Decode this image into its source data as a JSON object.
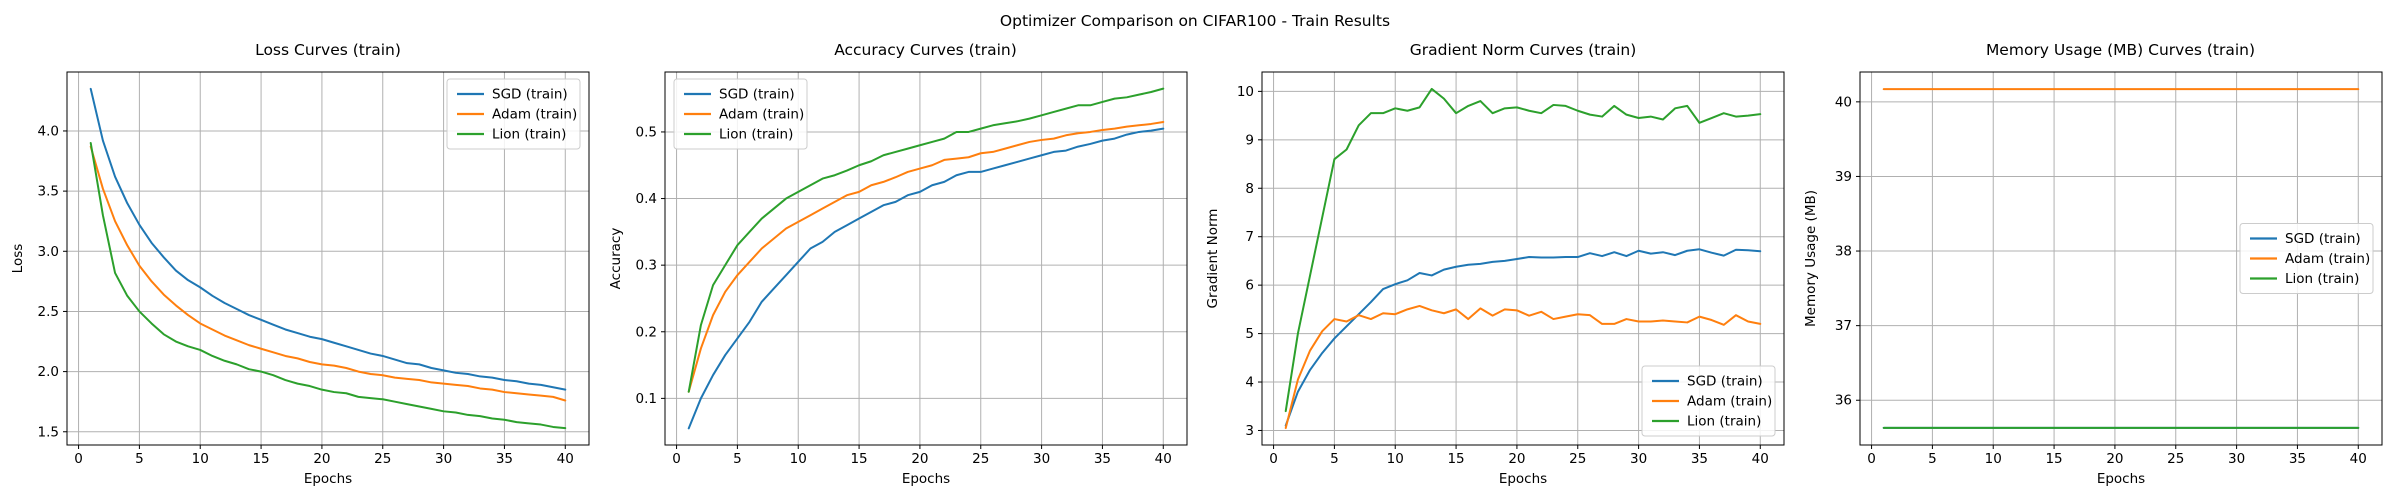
{
  "figure": {
    "suptitle": "Optimizer Comparison on CIFAR100 - Train Results",
    "background_color": "#ffffff",
    "grid_color": "#b0b0b0",
    "axis_color": "#000000",
    "legend_border_color": "#cccccc"
  },
  "chart_data": [
    {
      "type": "line",
      "title": "Loss Curves (train)",
      "xlabel": "Epochs",
      "ylabel": "Loss",
      "xlim": [
        -0.95,
        41.95
      ],
      "ylim": [
        1.39,
        4.49
      ],
      "xticks": [
        0,
        5,
        10,
        15,
        20,
        25,
        30,
        35,
        40
      ],
      "xtick_labels": [
        "0",
        "5",
        "10",
        "15",
        "20",
        "25",
        "30",
        "35",
        "40"
      ],
      "yticks": [
        1.5,
        2.0,
        2.5,
        3.0,
        3.5,
        4.0
      ],
      "ytick_labels": [
        "1.5",
        "2.0",
        "2.5",
        "3.0",
        "3.5",
        "4.0"
      ],
      "grid": true,
      "legend_position": "upper right",
      "x": [
        1,
        2,
        3,
        4,
        5,
        6,
        7,
        8,
        9,
        10,
        11,
        12,
        13,
        14,
        15,
        16,
        17,
        18,
        19,
        20,
        21,
        22,
        23,
        24,
        25,
        26,
        27,
        28,
        29,
        30,
        31,
        32,
        33,
        34,
        35,
        36,
        37,
        38,
        39,
        40
      ],
      "series": [
        {
          "name": "SGD (train)",
          "color": "#1f77b4",
          "values": [
            4.35,
            3.92,
            3.62,
            3.4,
            3.22,
            3.07,
            2.95,
            2.84,
            2.76,
            2.7,
            2.63,
            2.57,
            2.52,
            2.47,
            2.43,
            2.39,
            2.35,
            2.32,
            2.29,
            2.27,
            2.24,
            2.21,
            2.18,
            2.15,
            2.13,
            2.1,
            2.07,
            2.06,
            2.03,
            2.01,
            1.99,
            1.98,
            1.96,
            1.95,
            1.93,
            1.92,
            1.9,
            1.89,
            1.87,
            1.85
          ]
        },
        {
          "name": "Adam (train)",
          "color": "#ff7f0e",
          "values": [
            3.87,
            3.52,
            3.25,
            3.05,
            2.88,
            2.75,
            2.64,
            2.55,
            2.47,
            2.4,
            2.35,
            2.3,
            2.26,
            2.22,
            2.19,
            2.16,
            2.13,
            2.11,
            2.08,
            2.06,
            2.05,
            2.03,
            2.0,
            1.98,
            1.97,
            1.95,
            1.94,
            1.93,
            1.91,
            1.9,
            1.89,
            1.88,
            1.86,
            1.85,
            1.83,
            1.82,
            1.81,
            1.8,
            1.79,
            1.76
          ]
        },
        {
          "name": "Lion (train)",
          "color": "#2ca02c",
          "values": [
            3.9,
            3.3,
            2.82,
            2.63,
            2.5,
            2.4,
            2.31,
            2.25,
            2.21,
            2.18,
            2.13,
            2.09,
            2.06,
            2.02,
            2.0,
            1.97,
            1.93,
            1.9,
            1.88,
            1.85,
            1.83,
            1.82,
            1.79,
            1.78,
            1.77,
            1.75,
            1.73,
            1.71,
            1.69,
            1.67,
            1.66,
            1.64,
            1.63,
            1.61,
            1.6,
            1.58,
            1.57,
            1.56,
            1.54,
            1.53
          ]
        }
      ]
    },
    {
      "type": "line",
      "title": "Accuracy Curves (train)",
      "xlabel": "Epochs",
      "ylabel": "Accuracy",
      "xlim": [
        -0.95,
        41.95
      ],
      "ylim": [
        0.03,
        0.59
      ],
      "xticks": [
        0,
        5,
        10,
        15,
        20,
        25,
        30,
        35,
        40
      ],
      "xtick_labels": [
        "0",
        "5",
        "10",
        "15",
        "20",
        "25",
        "30",
        "35",
        "40"
      ],
      "yticks": [
        0.1,
        0.2,
        0.3,
        0.4,
        0.5
      ],
      "ytick_labels": [
        "0.1",
        "0.2",
        "0.3",
        "0.4",
        "0.5"
      ],
      "grid": true,
      "legend_position": "upper left",
      "x": [
        1,
        2,
        3,
        4,
        5,
        6,
        7,
        8,
        9,
        10,
        11,
        12,
        13,
        14,
        15,
        16,
        17,
        18,
        19,
        20,
        21,
        22,
        23,
        24,
        25,
        26,
        27,
        28,
        29,
        30,
        31,
        32,
        33,
        34,
        35,
        36,
        37,
        38,
        39,
        40
      ],
      "series": [
        {
          "name": "SGD (train)",
          "color": "#1f77b4",
          "values": [
            0.055,
            0.1,
            0.135,
            0.165,
            0.19,
            0.215,
            0.245,
            0.265,
            0.285,
            0.305,
            0.325,
            0.335,
            0.35,
            0.36,
            0.37,
            0.38,
            0.39,
            0.395,
            0.405,
            0.41,
            0.42,
            0.425,
            0.435,
            0.44,
            0.44,
            0.445,
            0.45,
            0.455,
            0.46,
            0.465,
            0.47,
            0.472,
            0.478,
            0.482,
            0.487,
            0.49,
            0.496,
            0.5,
            0.502,
            0.505
          ]
        },
        {
          "name": "Adam (train)",
          "color": "#ff7f0e",
          "values": [
            0.11,
            0.175,
            0.225,
            0.26,
            0.285,
            0.305,
            0.325,
            0.34,
            0.355,
            0.365,
            0.375,
            0.385,
            0.395,
            0.405,
            0.41,
            0.42,
            0.425,
            0.432,
            0.44,
            0.445,
            0.45,
            0.458,
            0.46,
            0.462,
            0.468,
            0.47,
            0.475,
            0.48,
            0.485,
            0.488,
            0.49,
            0.495,
            0.498,
            0.5,
            0.503,
            0.505,
            0.508,
            0.51,
            0.512,
            0.515
          ]
        },
        {
          "name": "Lion (train)",
          "color": "#2ca02c",
          "values": [
            0.11,
            0.21,
            0.27,
            0.3,
            0.33,
            0.35,
            0.37,
            0.385,
            0.4,
            0.41,
            0.42,
            0.43,
            0.435,
            0.442,
            0.45,
            0.456,
            0.465,
            0.47,
            0.475,
            0.48,
            0.485,
            0.49,
            0.5,
            0.5,
            0.505,
            0.51,
            0.513,
            0.516,
            0.52,
            0.525,
            0.53,
            0.535,
            0.54,
            0.54,
            0.545,
            0.55,
            0.552,
            0.556,
            0.56,
            0.565
          ]
        }
      ]
    },
    {
      "type": "line",
      "title": "Gradient Norm Curves (train)",
      "xlabel": "Epochs",
      "ylabel": "Gradient Norm",
      "xlim": [
        -0.95,
        41.95
      ],
      "ylim": [
        2.7,
        10.4
      ],
      "xticks": [
        0,
        5,
        10,
        15,
        20,
        25,
        30,
        35,
        40
      ],
      "xtick_labels": [
        "0",
        "5",
        "10",
        "15",
        "20",
        "25",
        "30",
        "35",
        "40"
      ],
      "yticks": [
        3,
        4,
        5,
        6,
        7,
        8,
        9,
        10
      ],
      "ytick_labels": [
        "3",
        "4",
        "5",
        "6",
        "7",
        "8",
        "9",
        "10"
      ],
      "grid": true,
      "legend_position": "lower right",
      "x": [
        1,
        2,
        3,
        4,
        5,
        6,
        7,
        8,
        9,
        10,
        11,
        12,
        13,
        14,
        15,
        16,
        17,
        18,
        19,
        20,
        21,
        22,
        23,
        24,
        25,
        26,
        27,
        28,
        29,
        30,
        31,
        32,
        33,
        34,
        35,
        36,
        37,
        38,
        39,
        40
      ],
      "series": [
        {
          "name": "SGD (train)",
          "color": "#1f77b4",
          "values": [
            3.1,
            3.8,
            4.25,
            4.6,
            4.9,
            5.15,
            5.4,
            5.65,
            5.92,
            6.02,
            6.1,
            6.25,
            6.2,
            6.32,
            6.38,
            6.42,
            6.44,
            6.48,
            6.5,
            6.54,
            6.58,
            6.57,
            6.57,
            6.58,
            6.58,
            6.66,
            6.6,
            6.68,
            6.6,
            6.71,
            6.65,
            6.68,
            6.62,
            6.71,
            6.74,
            6.67,
            6.61,
            6.73,
            6.72,
            6.7
          ]
        },
        {
          "name": "Adam (train)",
          "color": "#ff7f0e",
          "values": [
            3.05,
            4.05,
            4.65,
            5.05,
            5.3,
            5.25,
            5.38,
            5.3,
            5.42,
            5.4,
            5.5,
            5.57,
            5.48,
            5.42,
            5.5,
            5.3,
            5.52,
            5.37,
            5.5,
            5.48,
            5.37,
            5.45,
            5.3,
            5.35,
            5.4,
            5.38,
            5.2,
            5.2,
            5.3,
            5.25,
            5.25,
            5.27,
            5.25,
            5.23,
            5.35,
            5.28,
            5.18,
            5.38,
            5.25,
            5.2
          ]
        },
        {
          "name": "Lion (train)",
          "color": "#2ca02c",
          "values": [
            3.4,
            5.0,
            6.2,
            7.4,
            8.6,
            8.8,
            9.3,
            9.55,
            9.55,
            9.65,
            9.6,
            9.67,
            10.05,
            9.85,
            9.55,
            9.7,
            9.8,
            9.55,
            9.65,
            9.67,
            9.6,
            9.55,
            9.72,
            9.7,
            9.6,
            9.52,
            9.48,
            9.7,
            9.52,
            9.45,
            9.48,
            9.42,
            9.65,
            9.7,
            9.35,
            9.45,
            9.55,
            9.48,
            9.5,
            9.53
          ]
        }
      ]
    },
    {
      "type": "line",
      "title": "Memory Usage (MB) Curves (train)",
      "xlabel": "Epochs",
      "ylabel": "Memory Usage (MB)",
      "xlim": [
        -0.95,
        41.95
      ],
      "ylim": [
        35.4,
        40.4
      ],
      "xticks": [
        0,
        5,
        10,
        15,
        20,
        25,
        30,
        35,
        40
      ],
      "xtick_labels": [
        "0",
        "5",
        "10",
        "15",
        "20",
        "25",
        "30",
        "35",
        "40"
      ],
      "yticks": [
        36,
        37,
        38,
        39,
        40
      ],
      "ytick_labels": [
        "36",
        "37",
        "38",
        "39",
        "40"
      ],
      "grid": true,
      "legend_position": "center right",
      "x": [
        1,
        2,
        3,
        4,
        5,
        6,
        7,
        8,
        9,
        10,
        11,
        12,
        13,
        14,
        15,
        16,
        17,
        18,
        19,
        20,
        21,
        22,
        23,
        24,
        25,
        26,
        27,
        28,
        29,
        30,
        31,
        32,
        33,
        34,
        35,
        36,
        37,
        38,
        39,
        40
      ],
      "series": [
        {
          "name": "SGD (train)",
          "color": "#1f77b4",
          "constant": 35.63
        },
        {
          "name": "Adam (train)",
          "color": "#ff7f0e",
          "constant": 40.17
        },
        {
          "name": "Lion (train)",
          "color": "#2ca02c",
          "constant": 35.63
        }
      ]
    }
  ]
}
